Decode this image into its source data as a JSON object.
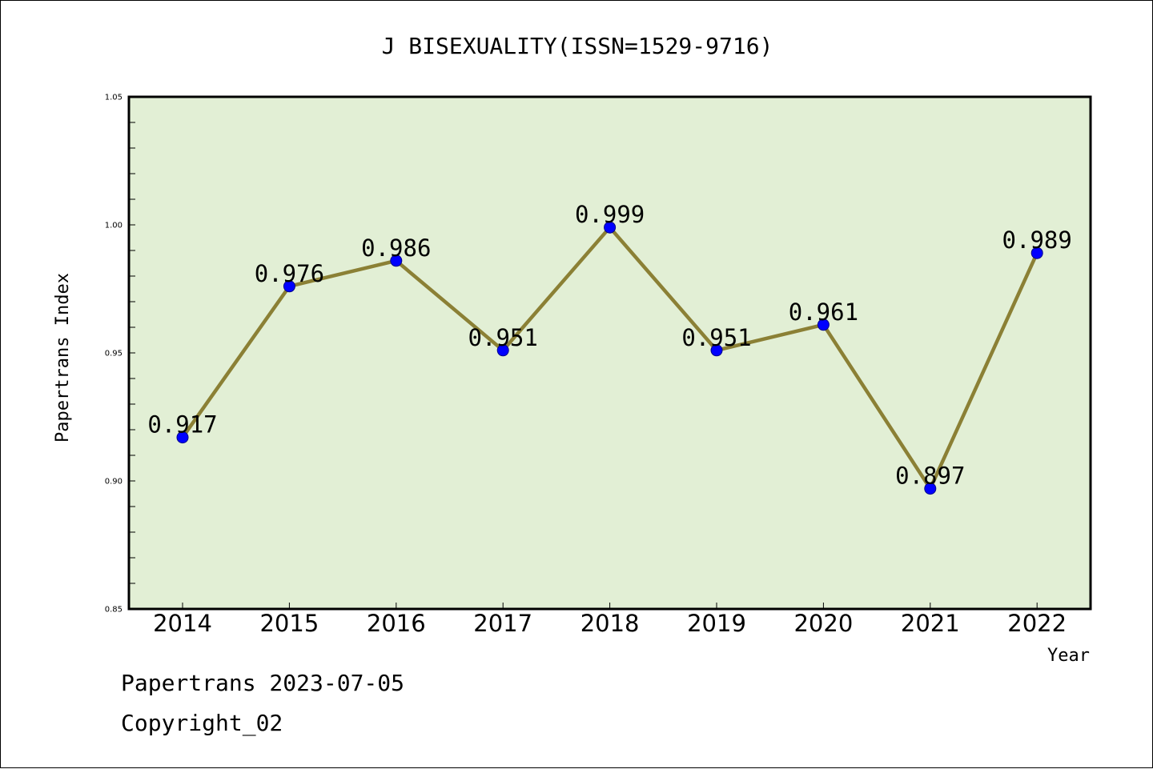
{
  "chart_data": {
    "type": "line",
    "title": "J BISEXUALITY(ISSN=1529-9716)",
    "xlabel": "Year",
    "ylabel": "Papertrans Index",
    "categories": [
      "2014",
      "2015",
      "2016",
      "2017",
      "2018",
      "2019",
      "2020",
      "2021",
      "2022"
    ],
    "series": [
      {
        "values": [
          0.917,
          0.976,
          0.986,
          0.951,
          0.999,
          0.951,
          0.961,
          0.897,
          0.989
        ]
      }
    ],
    "data_labels": [
      "0.917",
      "0.976",
      "0.986",
      "0.951",
      "0.999",
      "0.951",
      "0.961",
      "0.897",
      "0.989"
    ],
    "ylim": [
      0.85,
      1.05
    ],
    "yticks": [
      "0.85",
      "0.90",
      "0.95",
      "1.00",
      "1.05"
    ],
    "grid": false,
    "colors": {
      "plot_background": "#e2efd5",
      "line": "#8b8035",
      "marker": "#0000ff",
      "marker_edge": "#00008b"
    }
  },
  "footer": {
    "line1": "Papertrans 2023-07-05",
    "line2": "Copyright_02"
  }
}
